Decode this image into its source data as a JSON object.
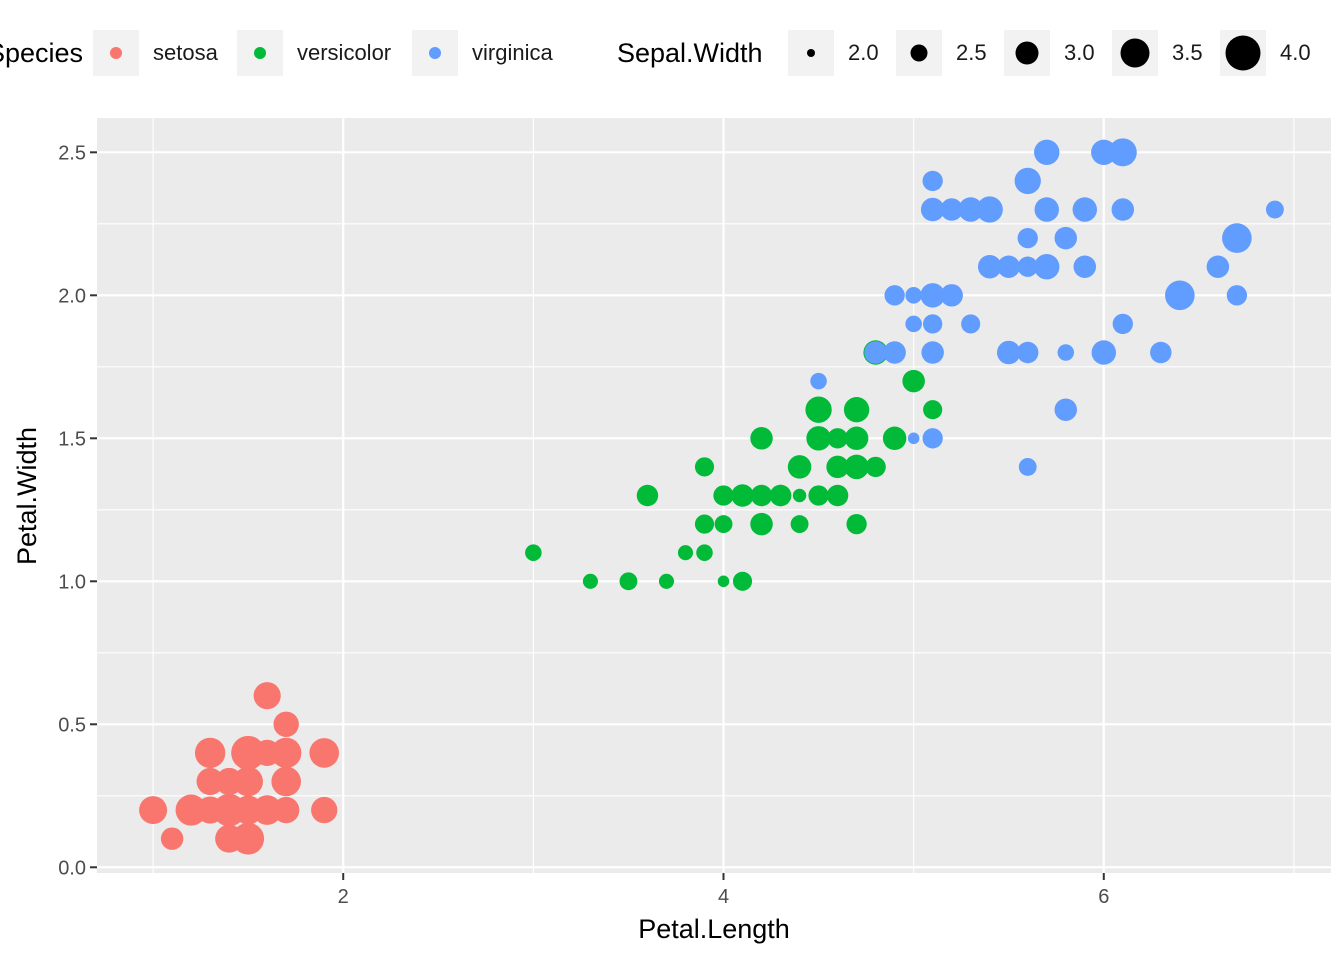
{
  "chart_data": {
    "type": "scatter",
    "title": "",
    "xlabel": "Petal.Length",
    "ylabel": "Petal.Width",
    "xlim": [
      0.705,
      7.195
    ],
    "ylim": [
      -0.02,
      2.62
    ],
    "x_ticks": [
      2,
      4,
      6
    ],
    "x_tick_labels": [
      "2",
      "4",
      "6"
    ],
    "y_ticks": [
      0.0,
      0.5,
      1.0,
      1.5,
      2.0,
      2.5
    ],
    "y_tick_labels": [
      "0.0",
      "0.5",
      "1.0",
      "1.5",
      "2.0",
      "2.5"
    ],
    "grid": true,
    "panel_background": "#ebebeb",
    "grid_color": "#ffffff",
    "legend_position": "top",
    "color_legend": {
      "title": "Species",
      "entries": [
        {
          "label": "setosa",
          "color": "#F8766D"
        },
        {
          "label": "versicolor",
          "color": "#00BA38"
        },
        {
          "label": "virginica",
          "color": "#619CFF"
        }
      ]
    },
    "size_legend": {
      "title": "Sepal.Width",
      "values": [
        2.0,
        2.5,
        3.0,
        3.5,
        4.0
      ],
      "labels": [
        "2.0",
        "2.5",
        "3.0",
        "3.5",
        "4.0"
      ],
      "color": "#000000"
    },
    "series": [
      {
        "name": "setosa",
        "color": "#F8766D",
        "points": [
          [
            1.4,
            0.2,
            3.5
          ],
          [
            1.4,
            0.2,
            3.0
          ],
          [
            1.3,
            0.2,
            3.2
          ],
          [
            1.5,
            0.2,
            3.1
          ],
          [
            1.4,
            0.2,
            3.6
          ],
          [
            1.7,
            0.4,
            3.9
          ],
          [
            1.4,
            0.3,
            3.4
          ],
          [
            1.5,
            0.2,
            3.4
          ],
          [
            1.4,
            0.2,
            2.9
          ],
          [
            1.5,
            0.1,
            3.1
          ],
          [
            1.5,
            0.2,
            3.7
          ],
          [
            1.6,
            0.2,
            3.4
          ],
          [
            1.4,
            0.1,
            3.0
          ],
          [
            1.1,
            0.1,
            3.0
          ],
          [
            1.2,
            0.2,
            4.0
          ],
          [
            1.5,
            0.4,
            4.4
          ],
          [
            1.3,
            0.4,
            3.9
          ],
          [
            1.4,
            0.3,
            3.5
          ],
          [
            1.7,
            0.3,
            3.8
          ],
          [
            1.5,
            0.3,
            3.8
          ],
          [
            1.7,
            0.2,
            3.4
          ],
          [
            1.5,
            0.4,
            3.7
          ],
          [
            1.0,
            0.2,
            3.6
          ],
          [
            1.7,
            0.5,
            3.3
          ],
          [
            1.9,
            0.2,
            3.4
          ],
          [
            1.6,
            0.2,
            3.0
          ],
          [
            1.6,
            0.4,
            3.4
          ],
          [
            1.5,
            0.2,
            3.5
          ],
          [
            1.4,
            0.2,
            3.4
          ],
          [
            1.6,
            0.2,
            3.2
          ],
          [
            1.6,
            0.2,
            3.1
          ],
          [
            1.5,
            0.4,
            3.4
          ],
          [
            1.5,
            0.1,
            4.1
          ],
          [
            1.4,
            0.2,
            4.2
          ],
          [
            1.5,
            0.2,
            3.1
          ],
          [
            1.2,
            0.2,
            3.2
          ],
          [
            1.3,
            0.2,
            3.5
          ],
          [
            1.4,
            0.1,
            3.6
          ],
          [
            1.3,
            0.2,
            3.0
          ],
          [
            1.5,
            0.2,
            3.4
          ],
          [
            1.3,
            0.3,
            3.5
          ],
          [
            1.3,
            0.3,
            2.3
          ],
          [
            1.3,
            0.2,
            3.2
          ],
          [
            1.6,
            0.6,
            3.5
          ],
          [
            1.9,
            0.4,
            3.8
          ],
          [
            1.4,
            0.3,
            3.0
          ],
          [
            1.6,
            0.2,
            3.8
          ],
          [
            1.4,
            0.2,
            3.2
          ],
          [
            1.5,
            0.2,
            3.7
          ],
          [
            1.4,
            0.2,
            3.3
          ]
        ]
      },
      {
        "name": "versicolor",
        "color": "#00BA38",
        "points": [
          [
            4.7,
            1.4,
            3.2
          ],
          [
            4.5,
            1.5,
            3.2
          ],
          [
            4.9,
            1.5,
            3.1
          ],
          [
            4.0,
            1.3,
            2.3
          ],
          [
            4.6,
            1.5,
            2.8
          ],
          [
            4.5,
            1.3,
            2.8
          ],
          [
            4.7,
            1.6,
            3.3
          ],
          [
            3.3,
            1.0,
            2.4
          ],
          [
            4.6,
            1.3,
            2.9
          ],
          [
            3.9,
            1.4,
            2.7
          ],
          [
            3.5,
            1.0,
            2.0
          ],
          [
            4.2,
            1.5,
            3.0
          ],
          [
            4.0,
            1.0,
            2.2
          ],
          [
            4.7,
            1.4,
            2.9
          ],
          [
            3.6,
            1.3,
            2.9
          ],
          [
            4.4,
            1.4,
            3.1
          ],
          [
            4.5,
            1.5,
            3.0
          ],
          [
            4.1,
            1.0,
            2.7
          ],
          [
            4.5,
            1.5,
            2.2
          ],
          [
            3.9,
            1.1,
            2.5
          ],
          [
            4.8,
            1.8,
            3.2
          ],
          [
            4.0,
            1.3,
            2.8
          ],
          [
            4.9,
            1.5,
            2.5
          ],
          [
            4.7,
            1.2,
            2.8
          ],
          [
            4.3,
            1.3,
            2.9
          ],
          [
            4.4,
            1.4,
            3.0
          ],
          [
            4.8,
            1.4,
            2.8
          ],
          [
            5.0,
            1.7,
            3.0
          ],
          [
            4.5,
            1.5,
            2.9
          ],
          [
            3.5,
            1.0,
            2.6
          ],
          [
            3.8,
            1.1,
            2.4
          ],
          [
            3.7,
            1.0,
            2.4
          ],
          [
            3.9,
            1.2,
            2.7
          ],
          [
            5.1,
            1.6,
            2.7
          ],
          [
            4.5,
            1.5,
            3.0
          ],
          [
            4.5,
            1.6,
            3.4
          ],
          [
            4.7,
            1.5,
            3.1
          ],
          [
            4.4,
            1.3,
            2.3
          ],
          [
            4.1,
            1.3,
            3.0
          ],
          [
            4.0,
            1.3,
            2.5
          ],
          [
            4.4,
            1.2,
            2.6
          ],
          [
            4.6,
            1.4,
            3.0
          ],
          [
            4.0,
            1.2,
            2.6
          ],
          [
            3.3,
            1.0,
            2.3
          ],
          [
            4.2,
            1.3,
            2.7
          ],
          [
            4.2,
            1.2,
            3.0
          ],
          [
            4.2,
            1.3,
            2.9
          ],
          [
            4.3,
            1.3,
            2.9
          ],
          [
            3.0,
            1.1,
            2.5
          ],
          [
            4.1,
            1.3,
            2.8
          ]
        ]
      },
      {
        "name": "virginica",
        "color": "#619CFF",
        "points": [
          [
            6.0,
            2.5,
            3.3
          ],
          [
            5.1,
            1.9,
            2.7
          ],
          [
            5.9,
            2.1,
            3.0
          ],
          [
            5.6,
            1.8,
            2.9
          ],
          [
            5.8,
            2.2,
            3.0
          ],
          [
            6.6,
            2.1,
            3.0
          ],
          [
            4.5,
            1.7,
            2.5
          ],
          [
            6.3,
            1.8,
            2.9
          ],
          [
            5.8,
            1.8,
            2.5
          ],
          [
            6.1,
            2.5,
            3.6
          ],
          [
            5.1,
            2.0,
            3.2
          ],
          [
            5.3,
            1.9,
            2.7
          ],
          [
            5.5,
            2.1,
            3.0
          ],
          [
            5.0,
            2.0,
            2.5
          ],
          [
            5.1,
            2.4,
            2.8
          ],
          [
            5.3,
            2.3,
            3.2
          ],
          [
            5.5,
            1.8,
            3.0
          ],
          [
            6.7,
            2.2,
            3.8
          ],
          [
            6.9,
            2.3,
            2.6
          ],
          [
            5.0,
            1.5,
            2.2
          ],
          [
            5.7,
            2.3,
            3.2
          ],
          [
            4.9,
            2.0,
            2.8
          ],
          [
            6.7,
            2.0,
            2.8
          ],
          [
            4.9,
            1.8,
            2.7
          ],
          [
            5.7,
            2.1,
            3.3
          ],
          [
            6.0,
            1.8,
            3.2
          ],
          [
            4.8,
            1.8,
            2.8
          ],
          [
            4.9,
            1.8,
            3.0
          ],
          [
            5.6,
            2.1,
            2.8
          ],
          [
            5.8,
            1.6,
            3.0
          ],
          [
            6.1,
            1.9,
            2.8
          ],
          [
            6.4,
            2.0,
            3.8
          ],
          [
            5.6,
            2.2,
            2.8
          ],
          [
            5.1,
            1.5,
            2.8
          ],
          [
            5.6,
            1.4,
            2.6
          ],
          [
            6.1,
            2.3,
            3.0
          ],
          [
            5.6,
            2.4,
            3.4
          ],
          [
            5.5,
            1.8,
            3.1
          ],
          [
            4.8,
            1.8,
            3.0
          ],
          [
            5.4,
            2.1,
            3.1
          ],
          [
            5.6,
            2.4,
            3.1
          ],
          [
            5.1,
            2.3,
            3.1
          ],
          [
            5.1,
            1.9,
            2.7
          ],
          [
            5.9,
            2.3,
            3.2
          ],
          [
            5.7,
            2.5,
            3.3
          ],
          [
            5.2,
            2.3,
            3.0
          ],
          [
            5.0,
            1.9,
            2.5
          ],
          [
            5.2,
            2.0,
            3.0
          ],
          [
            5.4,
            2.3,
            3.4
          ],
          [
            5.1,
            1.8,
            3.0
          ]
        ]
      }
    ]
  }
}
